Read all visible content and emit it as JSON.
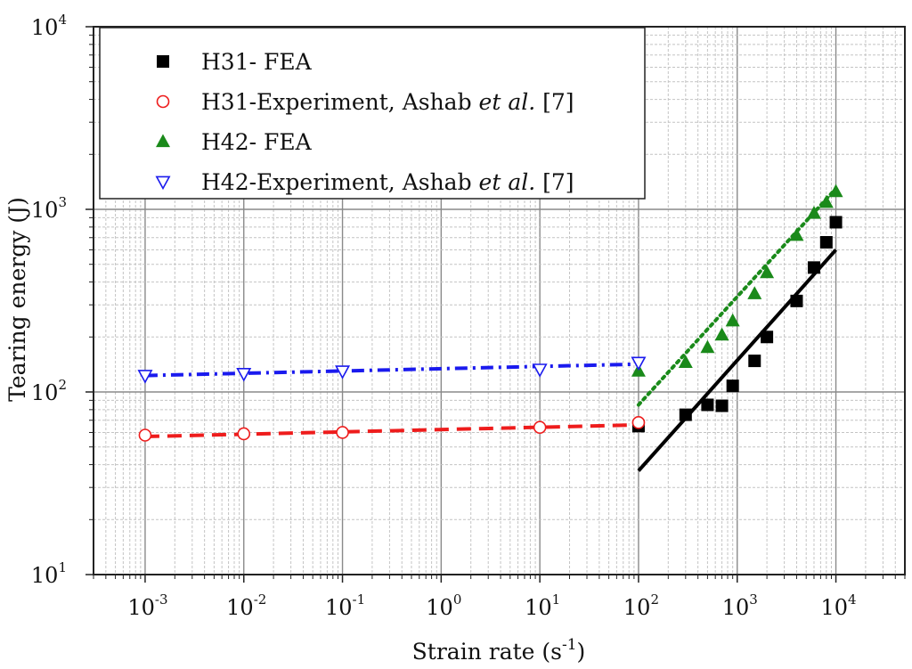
{
  "chart_data": {
    "type": "scatter",
    "xlabel_main": "Strain rate (s",
    "xlabel_sup": "-1",
    "xlabel_close": ")",
    "ylabel": "Tearing energy (J)",
    "x_scale": "log",
    "y_scale": "log",
    "xlim": [
      0.0003,
      50000
    ],
    "ylim": [
      10,
      10000
    ],
    "grid": true,
    "legend_position": "top-left",
    "x_ticks": [
      {
        "base": "10",
        "exp": "-3",
        "value": 0.001
      },
      {
        "base": "10",
        "exp": "-2",
        "value": 0.01
      },
      {
        "base": "10",
        "exp": "-1",
        "value": 0.1
      },
      {
        "base": "10",
        "exp": "0",
        "value": 1
      },
      {
        "base": "10",
        "exp": "1",
        "value": 10
      },
      {
        "base": "10",
        "exp": "2",
        "value": 100
      },
      {
        "base": "10",
        "exp": "3",
        "value": 1000
      },
      {
        "base": "10",
        "exp": "4",
        "value": 10000
      }
    ],
    "y_ticks": [
      {
        "base": "10",
        "exp": "1",
        "value": 10
      },
      {
        "base": "10",
        "exp": "2",
        "value": 100
      },
      {
        "base": "10",
        "exp": "3",
        "value": 1000
      },
      {
        "base": "10",
        "exp": "4",
        "value": 10000
      }
    ],
    "series": [
      {
        "name": "H31- FEA",
        "legend_parts": [
          "H31- FEA"
        ],
        "marker": "square",
        "filled": true,
        "color": "#000000",
        "x": [
          100,
          300,
          500,
          700,
          900,
          1500,
          2000,
          4000,
          6000,
          8000,
          10000
        ],
        "y": [
          65,
          75,
          85,
          84,
          108,
          148,
          200,
          315,
          480,
          660,
          850
        ],
        "fit": {
          "x": [
            100,
            10000
          ],
          "y": [
            37,
            600
          ],
          "style": "solid"
        }
      },
      {
        "name": "H31-Experiment, Ashab et al. [7]",
        "legend_parts": [
          "H31-Experiment, Ashab ",
          "et al.",
          " [7]"
        ],
        "marker": "circle",
        "filled": false,
        "color": "#ee1c1c",
        "x": [
          0.001,
          0.01,
          0.1,
          10,
          100
        ],
        "y": [
          58,
          59,
          60,
          64,
          68
        ],
        "fit": {
          "x": [
            0.001,
            100
          ],
          "y": [
            57,
            66
          ],
          "style": "dashed"
        }
      },
      {
        "name": "H42- FEA",
        "legend_parts": [
          "H42- FEA"
        ],
        "marker": "triangle-up",
        "filled": true,
        "color": "#1a8a1a",
        "x": [
          100,
          300,
          500,
          700,
          900,
          1500,
          2000,
          4000,
          6000,
          8000,
          10000
        ],
        "y": [
          130,
          145,
          175,
          205,
          245,
          345,
          450,
          720,
          950,
          1090,
          1250
        ],
        "fit": {
          "x": [
            100,
            10000
          ],
          "y": [
            85,
            1300
          ],
          "style": "dotted"
        }
      },
      {
        "name": "H42-Experiment, Ashab et al. [7]",
        "legend_parts": [
          "H42-Experiment, Ashab ",
          "et al.",
          " [7]"
        ],
        "marker": "triangle-down",
        "filled": false,
        "color": "#1a1aee",
        "x": [
          0.001,
          0.01,
          0.1,
          10,
          100
        ],
        "y": [
          123,
          126,
          130,
          133,
          145
        ],
        "fit": {
          "x": [
            0.001,
            100
          ],
          "y": [
            123,
            142
          ],
          "style": "dashdot"
        }
      }
    ]
  }
}
